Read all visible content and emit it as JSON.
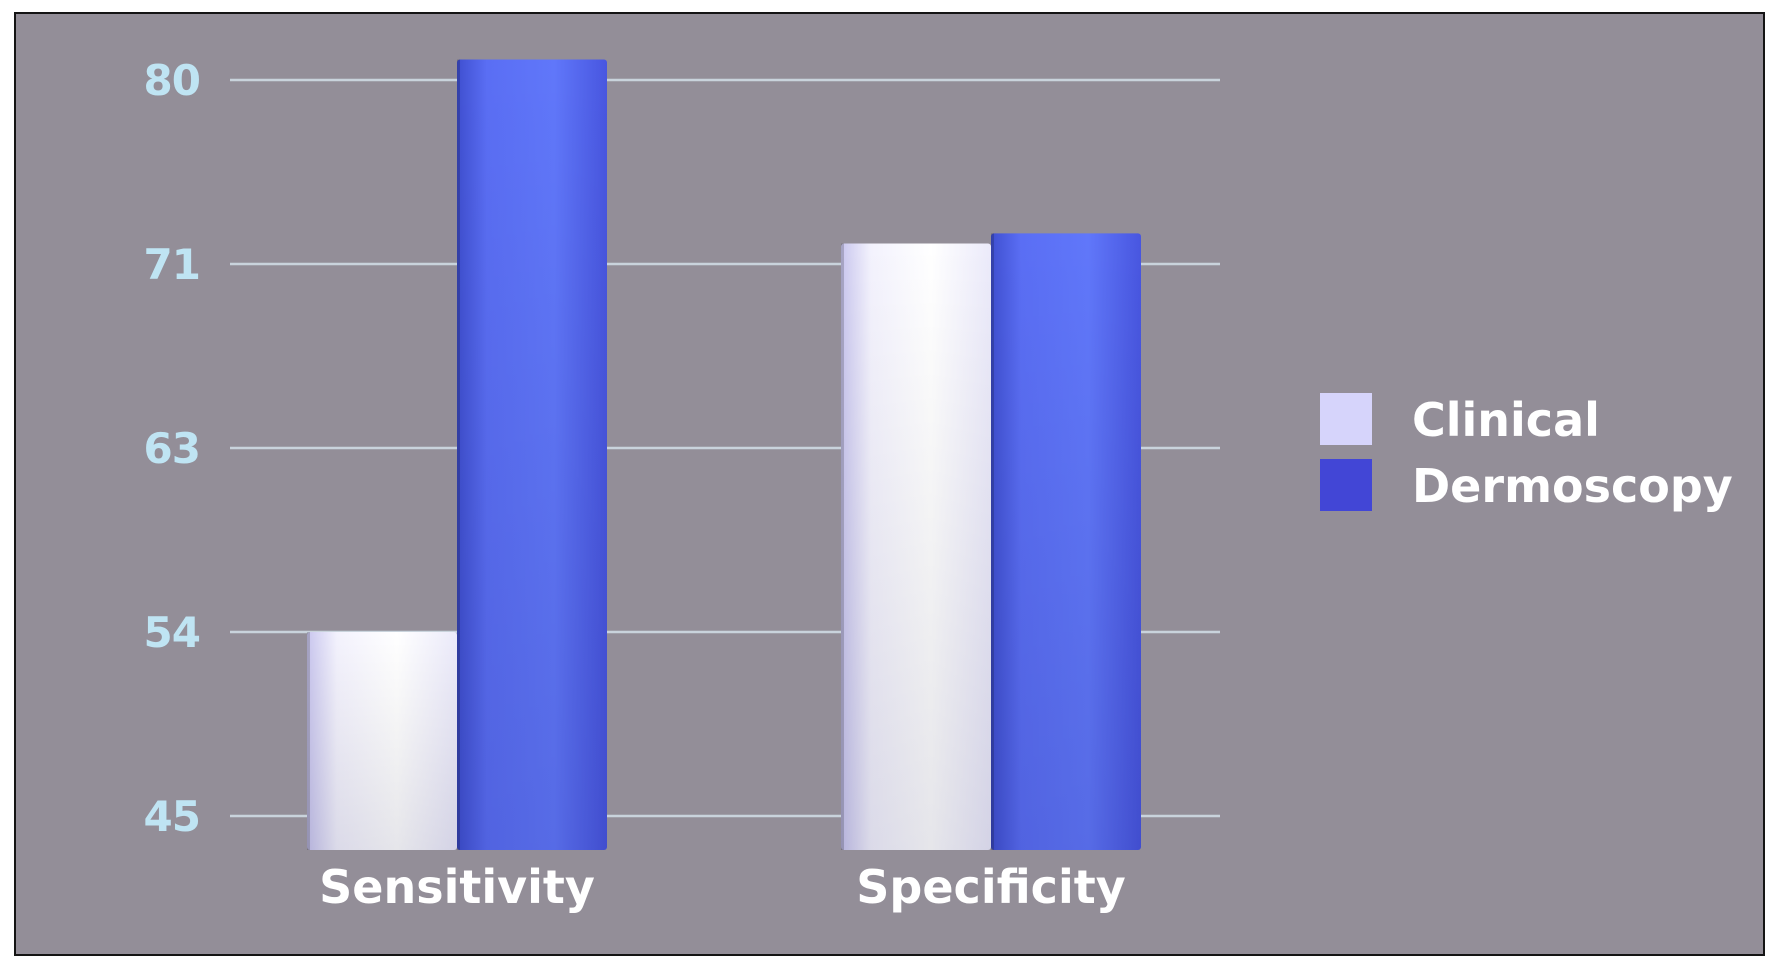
{
  "chart_data": {
    "type": "bar",
    "title": "",
    "xlabel": "",
    "ylabel": "",
    "categories": [
      "Sensitivity",
      "Specificity"
    ],
    "series": [
      {
        "name": "Clinical",
        "values": [
          54,
          72
        ]
      },
      {
        "name": "Dermoscopy",
        "values": [
          81,
          72.5
        ]
      }
    ],
    "y_ticks": [
      "45",
      "54",
      "63",
      "71",
      "80"
    ],
    "ylim": [
      45,
      80
    ],
    "grid": true,
    "legend_position": "right",
    "colors": {
      "background": "#938e98",
      "grid": "#c9d3dc",
      "tick_label": "#bfe4f3",
      "clinical": "#ecebfb",
      "dermoscopy": "#5468f2",
      "legend_clinical": "#d6d4fb",
      "legend_dermoscopy": "#4246d6"
    }
  }
}
